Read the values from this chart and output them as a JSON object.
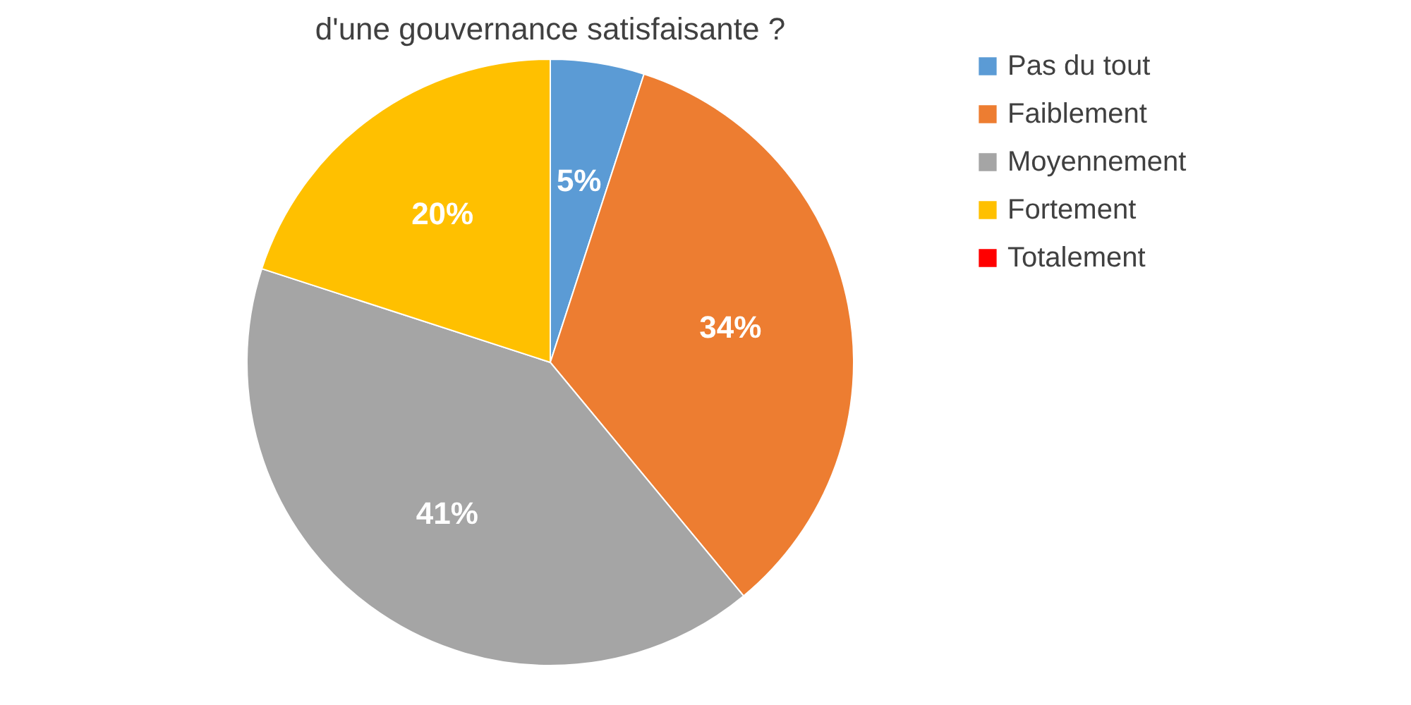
{
  "chart_data": {
    "type": "pie",
    "title": "d'une gouvernance satisfaisante ?",
    "categories": [
      "Pas du tout",
      "Faiblement",
      "Moyennement",
      "Fortement",
      "Totalement"
    ],
    "values": [
      5,
      34,
      41,
      20,
      0
    ],
    "colors": [
      "#5b9bd5",
      "#ed7d31",
      "#a5a5a5",
      "#ffc000",
      "#ff0000"
    ],
    "value_labels": [
      "5%",
      "34%",
      "41%",
      "20%",
      null
    ],
    "legend": "right"
  }
}
